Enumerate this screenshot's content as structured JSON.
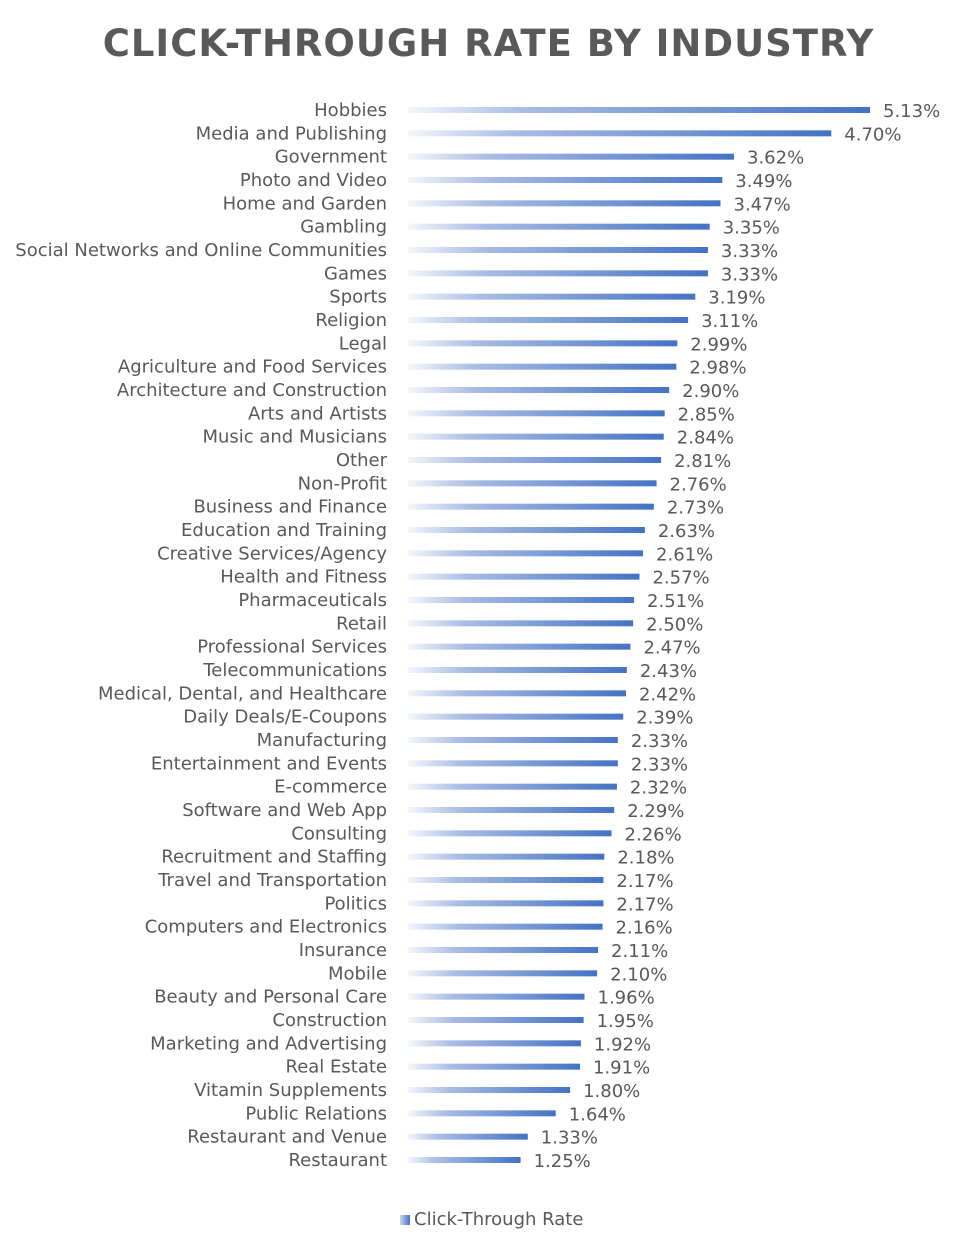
{
  "chart_data": {
    "type": "bar",
    "orientation": "horizontal",
    "title": "CLICK-THROUGH RATE BY INDUSTRY",
    "categories": [
      "Hobbies",
      "Media and Publishing",
      "Government",
      "Photo and Video",
      "Home and Garden",
      "Gambling",
      "Social Networks and Online Communities",
      "Games",
      "Sports",
      "Religion",
      "Legal",
      "Agriculture and Food Services",
      "Architecture and Construction",
      "Arts and Artists",
      "Music and Musicians",
      "Other",
      "Non-Profit",
      "Business and Finance",
      "Education and Training",
      "Creative Services/Agency",
      "Health and Fitness",
      "Pharmaceuticals",
      "Retail",
      "Professional Services",
      "Telecommunications",
      "Medical, Dental, and Healthcare",
      "Daily Deals/E-Coupons",
      "Manufacturing",
      "Entertainment and Events",
      "E-commerce",
      "Software and Web App",
      "Consulting",
      "Recruitment and Staffing",
      "Travel and Transportation",
      "Politics",
      "Computers and Electronics",
      "Insurance",
      "Mobile",
      "Beauty and Personal Care",
      "Construction",
      "Marketing and Advertising",
      "Real Estate",
      "Vitamin Supplements",
      "Public Relations",
      "Restaurant and Venue",
      "Restaurant"
    ],
    "series": [
      {
        "name": "Click-Through Rate",
        "values": [
          5.13,
          4.7,
          3.62,
          3.49,
          3.47,
          3.35,
          3.33,
          3.33,
          3.19,
          3.11,
          2.99,
          2.98,
          2.9,
          2.85,
          2.84,
          2.81,
          2.76,
          2.73,
          2.63,
          2.61,
          2.57,
          2.51,
          2.5,
          2.47,
          2.43,
          2.42,
          2.39,
          2.33,
          2.33,
          2.32,
          2.29,
          2.26,
          2.18,
          2.17,
          2.17,
          2.16,
          2.11,
          2.1,
          1.96,
          1.95,
          1.92,
          1.91,
          1.8,
          1.64,
          1.33,
          1.25
        ],
        "labels": [
          "5.13%",
          "4.70%",
          "3.62%",
          "3.49%",
          "3.47%",
          "3.35%",
          "3.33%",
          "3.33%",
          "3.19%",
          "3.11%",
          "2.99%",
          "2.98%",
          "2.90%",
          "2.85%",
          "2.84%",
          "2.81%",
          "2.76%",
          "2.73%",
          "2.63%",
          "2.61%",
          "2.57%",
          "2.51%",
          "2.50%",
          "2.47%",
          "2.43%",
          "2.42%",
          "2.39%",
          "2.33%",
          "2.33%",
          "2.32%",
          "2.29%",
          "2.26%",
          "2.18%",
          "2.17%",
          "2.17%",
          "2.16%",
          "2.11%",
          "2.10%",
          "1.96%",
          "1.95%",
          "1.92%",
          "1.91%",
          "1.80%",
          "1.64%",
          "1.33%",
          "1.25%"
        ]
      }
    ],
    "xlim": [
      0,
      5.13
    ],
    "grid": false,
    "legend": "bottom",
    "colors": {
      "bar_start": "#f4f6fb",
      "bar_end": "#4472C4",
      "text": "#595959"
    }
  }
}
